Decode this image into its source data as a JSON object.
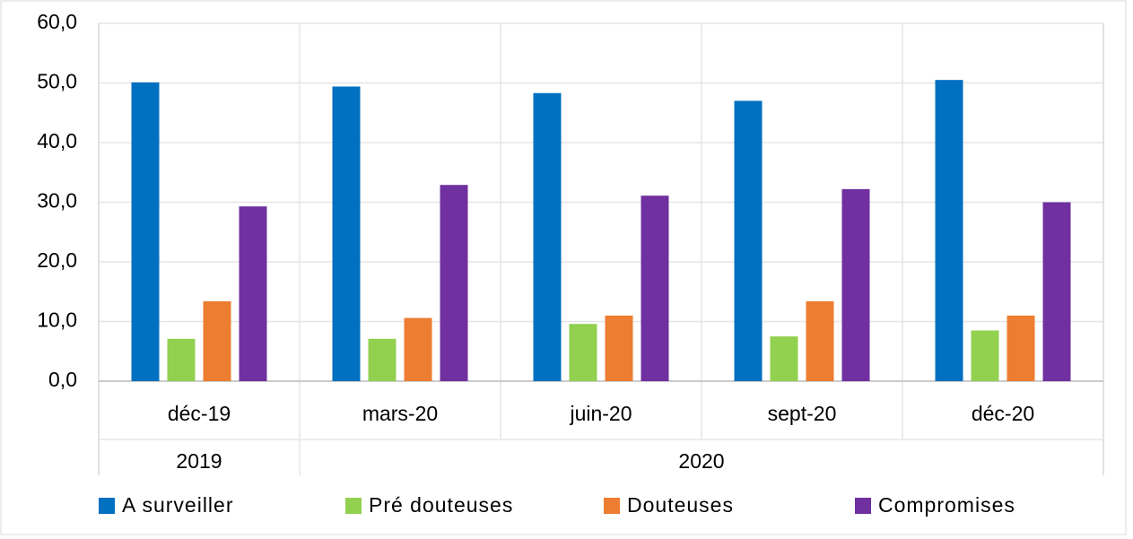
{
  "chart_data": {
    "type": "bar",
    "categories": [
      "déc-19",
      "mars-20",
      "juin-20",
      "sept-20",
      "déc-20"
    ],
    "group_labels": [
      "2019",
      "2020",
      null,
      null,
      null
    ],
    "series": [
      {
        "name": "A surveiller",
        "color": "#0070c0",
        "values": [
          50.1,
          49.4,
          48.3,
          47.0,
          50.5
        ]
      },
      {
        "name": "Pré douteuses",
        "color": "#92d050",
        "values": [
          7.1,
          7.1,
          9.6,
          7.5,
          8.5
        ]
      },
      {
        "name": "Douteuses",
        "color": "#ed7d31",
        "values": [
          13.4,
          10.6,
          11.0,
          13.4,
          11.0
        ]
      },
      {
        "name": "Compromises",
        "color": "#7030a0",
        "values": [
          29.3,
          32.9,
          31.1,
          32.2,
          30.0
        ]
      }
    ],
    "ylim": [
      0,
      60
    ],
    "yticks": [
      {
        "value": 0,
        "label": "0,0"
      },
      {
        "value": 10,
        "label": "10,0"
      },
      {
        "value": 20,
        "label": "20,0"
      },
      {
        "value": 30,
        "label": "30,0"
      },
      {
        "value": 40,
        "label": "40,0"
      },
      {
        "value": 50,
        "label": "50,0"
      },
      {
        "value": 60,
        "label": "60,0"
      }
    ],
    "grid": true,
    "legend": "bottom"
  }
}
